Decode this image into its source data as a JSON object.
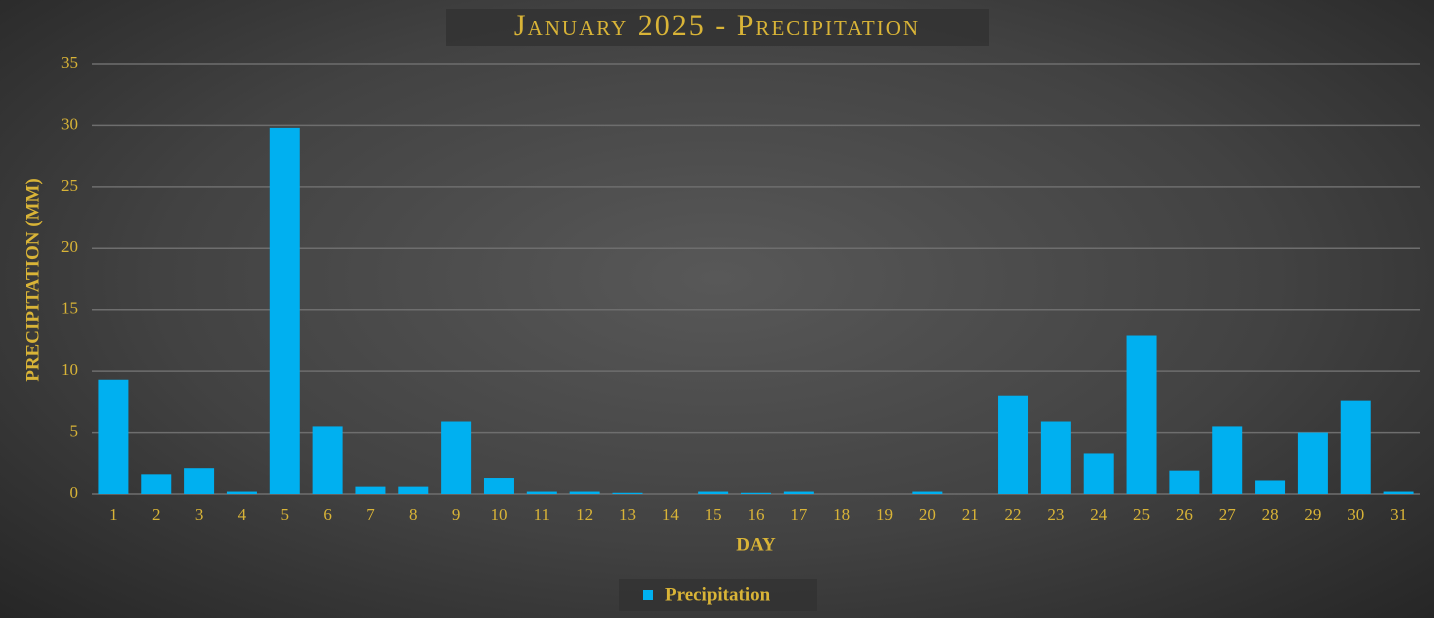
{
  "chart_data": {
    "type": "bar",
    "title": "January 2025 - Precipitation",
    "x_label": "DAY",
    "y_label": "PRECIPITATION (MM)",
    "categories": [
      "1",
      "2",
      "3",
      "4",
      "5",
      "6",
      "7",
      "8",
      "9",
      "10",
      "11",
      "12",
      "13",
      "14",
      "15",
      "16",
      "17",
      "18",
      "19",
      "20",
      "21",
      "22",
      "23",
      "24",
      "25",
      "26",
      "27",
      "28",
      "29",
      "30",
      "31"
    ],
    "series": [
      {
        "name": "Precipitation",
        "color": "#00b0f0",
        "values": [
          9.3,
          1.6,
          2.1,
          0.2,
          29.8,
          5.5,
          0.6,
          0.6,
          5.9,
          1.3,
          0.2,
          0.2,
          0.1,
          0,
          0.2,
          0.1,
          0.2,
          0,
          0,
          0.2,
          0,
          8.0,
          5.9,
          3.3,
          12.9,
          1.9,
          5.5,
          1.1,
          5.0,
          7.6,
          0.2
        ]
      }
    ],
    "ylim": [
      0,
      35
    ],
    "yticks": [
      0,
      5,
      10,
      15,
      20,
      25,
      30,
      35
    ],
    "grid": true,
    "legend": "bottom"
  }
}
